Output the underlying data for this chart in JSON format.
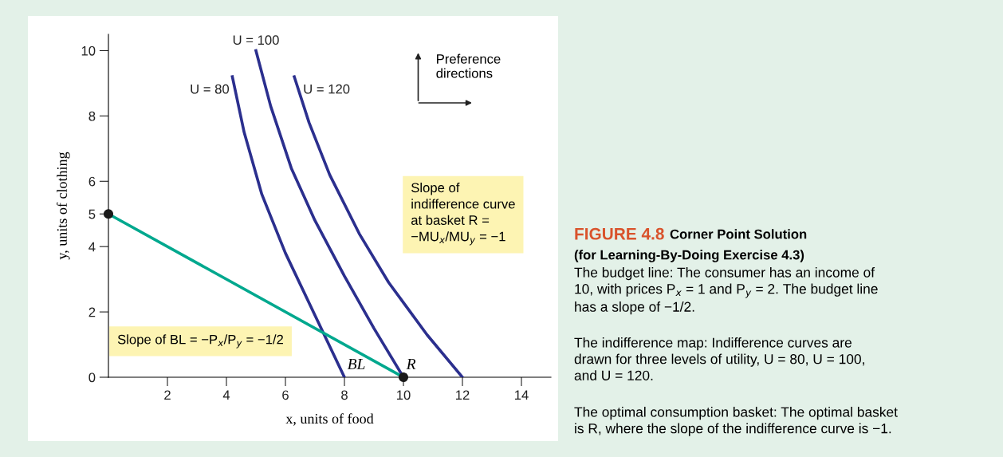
{
  "chart_data": {
    "type": "line",
    "title": "FIGURE 4.8",
    "subtitle": "Corner Point Solution\n(for Learning-By-Doing Exercise 4.3)",
    "xlabel": "x, units of food",
    "ylabel": "y, units of clothing",
    "xlim": [
      0,
      15
    ],
    "ylim": [
      0,
      10.5
    ],
    "xticks": [
      2,
      4,
      6,
      8,
      10,
      12,
      14
    ],
    "yticks": [
      0,
      2,
      4,
      5,
      6,
      8,
      10
    ],
    "grid": false,
    "legend": false,
    "marker": "none",
    "line_style": "solid",
    "series": [
      {
        "name": "U = 80",
        "color": "#2b2f8e",
        "x": [
          4.2,
          4.6,
          5.2,
          6,
          7,
          8
        ],
        "values": [
          9.2,
          7.5,
          5.6,
          3.8,
          1.9,
          0
        ]
      },
      {
        "name": "U = 100",
        "color": "#2b2f8e",
        "x": [
          5,
          5.5,
          6.2,
          7,
          8,
          9,
          10
        ],
        "values": [
          10,
          8.3,
          6.4,
          4.8,
          3.1,
          1.5,
          0
        ]
      },
      {
        "name": "U = 120",
        "color": "#2b2f8e",
        "x": [
          6.3,
          6.8,
          7.5,
          8.5,
          9.5,
          10.8,
          12
        ],
        "values": [
          9.2,
          7.8,
          6.2,
          4.4,
          2.9,
          1.3,
          0
        ]
      },
      {
        "color": "#00a88e",
        "x": [
          0,
          10
        ],
        "values": [
          5,
          0
        ]
      },
      {
        "type": "scatter",
        "color": "#1a1a1a",
        "marker": "circle",
        "x": [
          0,
          10
        ],
        "values": [
          5,
          0
        ]
      }
    ],
    "annotations": [
      "Slope of BL = −P$_{x}$/P$_{y}$ = −1/2",
      "Slope of\nindifference curve\nat basket R =\n−MU$_{x}$/MU$_{y}$ = −1",
      "Preference\ndirections",
      {
        "text": "BL",
        "x": 8,
        "y": 0
      },
      {
        "text": "R",
        "x": 10,
        "y": 0
      },
      "The budget line: The consumer has an income of\n10, with prices P$_{x}$ = 1 and P$_{y}$ = 2. The budget line\nhas a slope of −1/2.",
      "The indifference map: Indifference curves are\ndrawn for three levels of utility, U = 80, U = 100,\nand U = 120.",
      "The optimal consumption basket: The optimal basket\nis R, where the slope of the indifference curve is −1."
    ]
  }
}
